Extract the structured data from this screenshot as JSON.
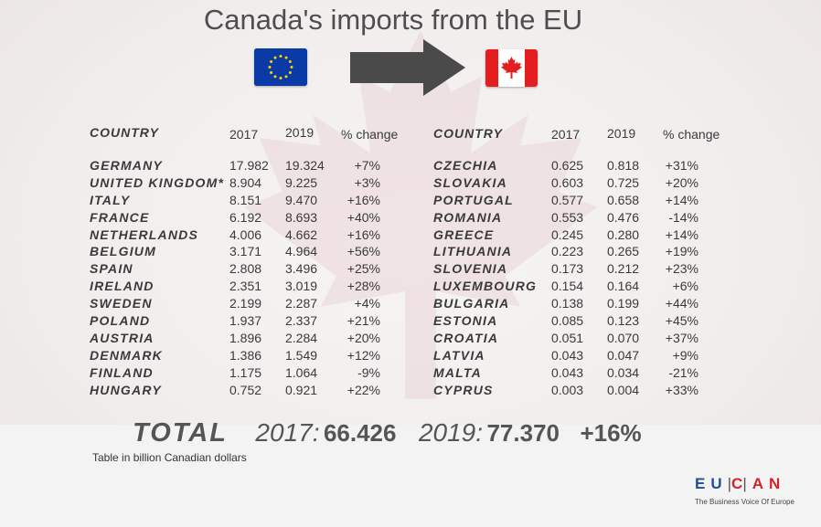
{
  "title": "Canada's imports from the EU",
  "table": {
    "headers": {
      "country": "COUNTRY",
      "y2017": "2017",
      "y2019": "2019",
      "change": "% change"
    },
    "left": [
      {
        "country": "GERMANY",
        "v2017": "17.982",
        "v2019": "19.324",
        "change": "+7%"
      },
      {
        "country": "UNITED KINGDOM*",
        "v2017": "8.904",
        "v2019": "9.225",
        "change": "+3%"
      },
      {
        "country": "ITALY",
        "v2017": "8.151",
        "v2019": "9.470",
        "change": "+16%"
      },
      {
        "country": "FRANCE",
        "v2017": "6.192",
        "v2019": "8.693",
        "change": "+40%"
      },
      {
        "country": "NETHERLANDS",
        "v2017": "4.006",
        "v2019": "4.662",
        "change": "+16%"
      },
      {
        "country": "BELGIUM",
        "v2017": "3.171",
        "v2019": "4.964",
        "change": "+56%"
      },
      {
        "country": "SPAIN",
        "v2017": "2.808",
        "v2019": "3.496",
        "change": "+25%"
      },
      {
        "country": "IRELAND",
        "v2017": "2.351",
        "v2019": "3.019",
        "change": "+28%"
      },
      {
        "country": "SWEDEN",
        "v2017": "2.199",
        "v2019": "2.287",
        "change": "+4%"
      },
      {
        "country": "POLAND",
        "v2017": "1.937",
        "v2019": "2.337",
        "change": "+21%"
      },
      {
        "country": "AUSTRIA",
        "v2017": "1.896",
        "v2019": "2.284",
        "change": "+20%"
      },
      {
        "country": "DENMARK",
        "v2017": "1.386",
        "v2019": "1.549",
        "change": "+12%"
      },
      {
        "country": "FINLAND",
        "v2017": "1.175",
        "v2019": "1.064",
        "change": "-9%"
      },
      {
        "country": "HUNGARY",
        "v2017": "0.752",
        "v2019": "0.921",
        "change": "+22%"
      }
    ],
    "right": [
      {
        "country": "CZECHIA",
        "v2017": "0.625",
        "v2019": "0.818",
        "change": "+31%"
      },
      {
        "country": "SLOVAKIA",
        "v2017": "0.603",
        "v2019": "0.725",
        "change": "+20%"
      },
      {
        "country": "PORTUGAL",
        "v2017": "0.577",
        "v2019": "0.658",
        "change": "+14%"
      },
      {
        "country": "ROMANIA",
        "v2017": "0.553",
        "v2019": "0.476",
        "change": "-14%"
      },
      {
        "country": "GREECE",
        "v2017": "0.245",
        "v2019": "0.280",
        "change": "+14%"
      },
      {
        "country": "LITHUANIA",
        "v2017": "0.223",
        "v2019": "0.265",
        "change": "+19%"
      },
      {
        "country": "SLOVENIA",
        "v2017": "0.173",
        "v2019": "0.212",
        "change": "+23%"
      },
      {
        "country": "LUXEMBOURG",
        "v2017": "0.154",
        "v2019": "0.164",
        "change": "+6%"
      },
      {
        "country": "BULGARIA",
        "v2017": "0.138",
        "v2019": "0.199",
        "change": "+44%"
      },
      {
        "country": "ESTONIA",
        "v2017": "0.085",
        "v2019": "0.123",
        "change": "+45%"
      },
      {
        "country": "CROATIA",
        "v2017": "0.051",
        "v2019": "0.070",
        "change": "+37%"
      },
      {
        "country": "LATVIA",
        "v2017": "0.043",
        "v2019": "0.047",
        "change": "+9%"
      },
      {
        "country": "MALTA",
        "v2017": "0.043",
        "v2019": "0.034",
        "change": "-21%"
      },
      {
        "country": "CYPRUS",
        "v2017": "0.003",
        "v2019": "0.004",
        "change": "+33%"
      }
    ]
  },
  "total": {
    "label": "TOTAL",
    "year2017": "2017:",
    "value2017": "66.426",
    "year2019": "2019:",
    "value2019": "77.370",
    "change": "+16%"
  },
  "note": "Table in billion Canadian dollars",
  "logo": {
    "letters": [
      "E",
      "U",
      "C",
      "A",
      "N"
    ],
    "tagline": "The Business Voice Of Europe"
  },
  "colors": {
    "eu_blue": "#0a3aa6",
    "eu_star": "#ffd200",
    "canada_red": "#e41e1e",
    "arrow": "#4a4a4a",
    "logo_blue": "#1d4f9c",
    "logo_red": "#d2232a"
  },
  "icons": {
    "eu": "eu-flag-icon",
    "arrow": "arrow-right-icon",
    "canada": "canada-flag-icon",
    "background": "maple-leaf-watermark"
  }
}
